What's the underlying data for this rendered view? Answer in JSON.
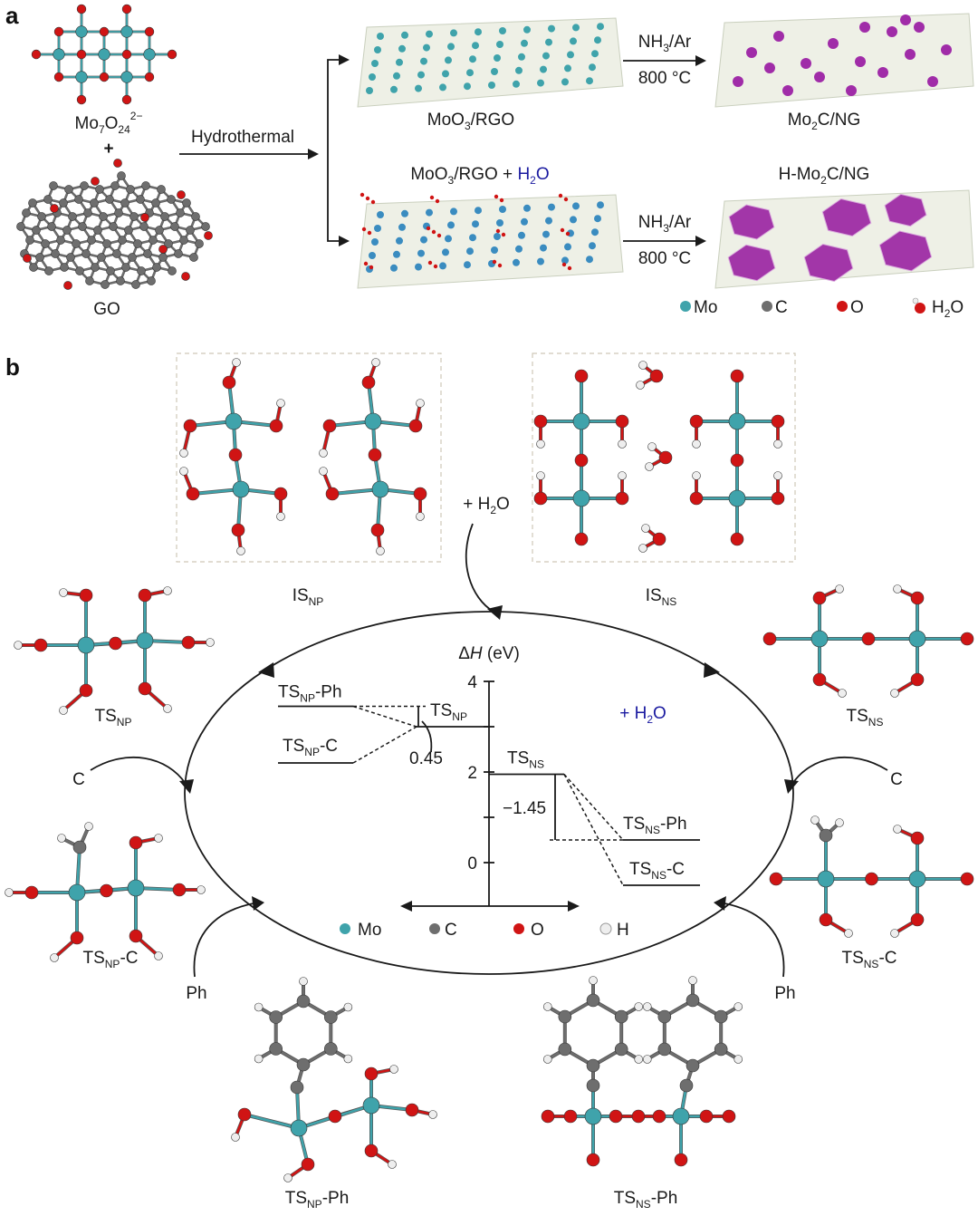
{
  "panel_a": {
    "label": "a",
    "precursor": {
      "base": "Mo",
      "s1": "7",
      "o": "O",
      "s2": "24",
      "sup": "2−"
    },
    "plus": "+",
    "go_label": "GO",
    "arrow_label": "Hydrothermal",
    "top_intermediate": {
      "a": "MoO",
      "s": "3",
      "b": "/RGO"
    },
    "bottom_intermediate": {
      "a": "MoO",
      "s": "3",
      "b": "/RGO + ",
      "h2o_a": "H",
      "h2o_s": "2",
      "h2o_b": "O"
    },
    "top_product": {
      "a": "Mo",
      "s": "2",
      "b": "C/NG"
    },
    "bottom_product": {
      "a": "H-Mo",
      "s": "2",
      "b": "C/NG"
    },
    "condition": {
      "gas_a": "NH",
      "gas_s": "3",
      "gas_b": "/Ar",
      "temp": "800 °C"
    },
    "legend": [
      {
        "label": "Mo",
        "color": "#3fa3ab"
      },
      {
        "label": "C",
        "color": "#6e6e6e"
      },
      {
        "label": "O",
        "color": "#d01414"
      },
      {
        "label_a": "H",
        "label_s": "2",
        "label_b": "O",
        "color": "#d01414"
      }
    ]
  },
  "panel_b": {
    "label": "b",
    "is_np": {
      "main": "IS",
      "sub": "NP"
    },
    "is_ns": {
      "main": "IS",
      "sub": "NS"
    },
    "add_water": {
      "a": "+ H",
      "s": "2",
      "b": "O"
    },
    "ts_np": {
      "main": "TS",
      "sub": "NP",
      "suffix": ""
    },
    "ts_ns": {
      "main": "TS",
      "sub": "NS",
      "suffix": ""
    },
    "ts_np_c": {
      "main": "TS",
      "sub": "NP",
      "suffix": "-C"
    },
    "ts_ns_c": {
      "main": "TS",
      "sub": "NS",
      "suffix": "-C"
    },
    "ts_np_ph": {
      "main": "TS",
      "sub": "NP",
      "suffix": "-Ph"
    },
    "ts_ns_ph": {
      "main": "TS",
      "sub": "NS",
      "suffix": "-Ph"
    },
    "reagent_c": "C",
    "reagent_ph": "Ph",
    "energy": {
      "axis_title_a": "Δ",
      "axis_title_b": "H",
      "axis_title_c": " (eV)",
      "ticks": [
        "4",
        "2",
        "0"
      ],
      "water_note": {
        "a": "+ H",
        "s": "2",
        "b": "O"
      },
      "delta_np": "0.45",
      "delta_ns": "−1.45",
      "levels": {
        "ts_np": 3.0,
        "ts_np_ph": 3.45,
        "ts_np_c": 2.2,
        "ts_ns": 1.95,
        "ts_ns_ph": 0.5,
        "ts_ns_c": -0.5
      },
      "ylim": [
        0,
        4
      ]
    },
    "legend": [
      {
        "label": "Mo",
        "color": "#3fa3ab"
      },
      {
        "label": "C",
        "color": "#6e6e6e"
      },
      {
        "label": "O",
        "color": "#d01414"
      },
      {
        "label": "H",
        "color": "#eeeeee"
      }
    ]
  }
}
